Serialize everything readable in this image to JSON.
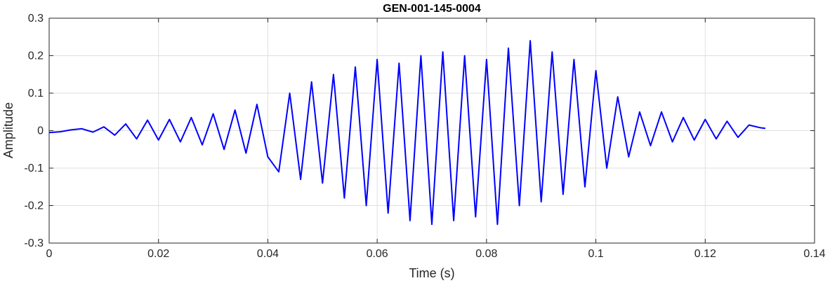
{
  "chart_data": {
    "type": "line",
    "title": "GEN-001-145-0004",
    "xlabel": "Time (s)",
    "ylabel": "Amplitude",
    "xlim": [
      0,
      0.14
    ],
    "ylim": [
      -0.3,
      0.3
    ],
    "grid": true,
    "x_ticks": [
      0,
      0.02,
      0.04,
      0.06,
      0.08,
      0.1,
      0.12,
      0.14
    ],
    "x_tick_labels": [
      "0",
      "0.02",
      "0.04",
      "0.06",
      "0.08",
      "0.1",
      "0.12",
      "0.14"
    ],
    "y_ticks": [
      -0.3,
      -0.2,
      -0.1,
      0,
      0.1,
      0.2,
      0.3
    ],
    "y_tick_labels": [
      "-0.3",
      "-0.2",
      "-0.1",
      "0",
      "0.1",
      "0.2",
      "0.3"
    ],
    "series": [
      {
        "color": "#0000ff",
        "x": [
          0,
          0.002,
          0.004,
          0.006,
          0.008,
          0.01,
          0.012,
          0.014,
          0.016,
          0.018,
          0.02,
          0.022,
          0.024,
          0.026,
          0.028,
          0.03,
          0.032,
          0.034,
          0.036,
          0.038,
          0.04,
          0.042,
          0.044,
          0.046,
          0.048,
          0.05,
          0.052,
          0.054,
          0.056,
          0.058,
          0.06,
          0.062,
          0.064,
          0.066,
          0.068,
          0.07,
          0.072,
          0.074,
          0.076,
          0.078,
          0.08,
          0.082,
          0.084,
          0.086,
          0.088,
          0.09,
          0.092,
          0.094,
          0.096,
          0.098,
          0.1,
          0.102,
          0.104,
          0.106,
          0.108,
          0.11,
          0.112,
          0.114,
          0.116,
          0.118,
          0.12,
          0.122,
          0.124,
          0.126,
          0.128,
          0.13,
          0.131
        ],
        "y": [
          -0.005,
          -0.003,
          0.002,
          0.005,
          -0.004,
          0.01,
          -0.012,
          0.018,
          -0.022,
          0.028,
          -0.025,
          0.03,
          -0.03,
          0.035,
          -0.038,
          0.045,
          -0.05,
          0.055,
          -0.06,
          0.07,
          -0.07,
          -0.11,
          0.1,
          -0.13,
          0.13,
          -0.14,
          0.15,
          -0.18,
          0.17,
          -0.2,
          0.19,
          -0.22,
          0.18,
          -0.24,
          0.2,
          -0.25,
          0.21,
          -0.24,
          0.2,
          -0.23,
          0.19,
          -0.25,
          0.22,
          -0.2,
          0.24,
          -0.19,
          0.21,
          -0.17,
          0.19,
          -0.15,
          0.16,
          -0.1,
          0.09,
          -0.07,
          0.05,
          -0.04,
          0.05,
          -0.03,
          0.035,
          -0.025,
          0.03,
          -0.022,
          0.025,
          -0.018,
          0.015,
          0.008,
          0.006
        ]
      }
    ]
  }
}
